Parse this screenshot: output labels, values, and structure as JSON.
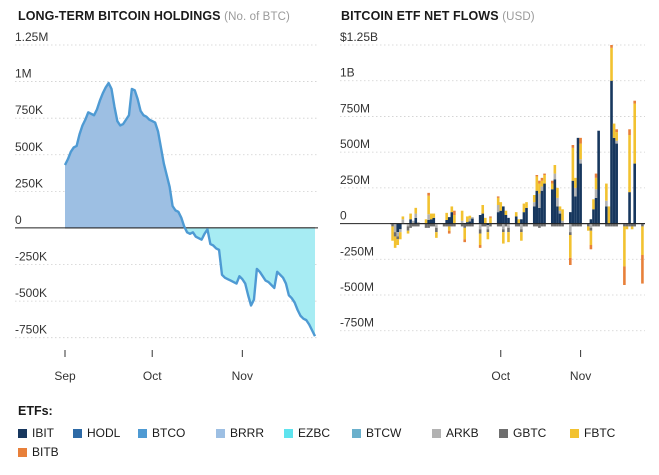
{
  "chart_data": [
    {
      "type": "area",
      "title": "LONG-TERM BITCOIN HOLDINGS",
      "unit": "(No. of BTC)",
      "ylim": [
        -800000,
        1250000
      ],
      "y_ticks": [
        1250000,
        1000000,
        750000,
        500000,
        250000,
        0,
        -250000,
        -500000,
        -750000
      ],
      "y_tick_labels": [
        "1.25M",
        "1M",
        "750K",
        "500K",
        "250K",
        "0",
        "-250K",
        "-500K",
        "-750K"
      ],
      "x_tick_labels": [
        "Sep",
        "Oct",
        "Nov"
      ],
      "x_ticks_day": [
        0,
        30,
        61
      ],
      "xlim_day": [
        0,
        86
      ],
      "colors": {
        "positive": "#9dbfe3",
        "negative": "#a7ecf3",
        "line": "#4e9ad3"
      },
      "x_day": [
        0,
        1,
        2,
        3,
        4,
        5,
        6,
        7,
        8,
        9,
        10,
        11,
        12,
        13,
        14,
        15,
        16,
        17,
        18,
        19,
        20,
        21,
        22,
        23,
        24,
        25,
        26,
        27,
        28,
        29,
        30,
        31,
        32,
        33,
        34,
        35,
        36,
        37,
        38,
        39,
        40,
        41,
        42,
        43,
        44,
        45,
        46,
        47,
        48,
        49,
        50,
        51,
        52,
        53,
        54,
        55,
        56,
        57,
        58,
        59,
        60,
        61,
        62,
        63,
        64,
        65,
        66,
        67,
        68,
        69,
        70,
        71,
        72,
        73,
        74,
        75,
        76,
        77,
        78,
        79,
        80,
        81,
        82,
        83,
        84,
        85,
        86
      ],
      "values": [
        430000,
        470000,
        520000,
        550000,
        560000,
        640000,
        700000,
        740000,
        790000,
        780000,
        770000,
        810000,
        870000,
        920000,
        960000,
        990000,
        950000,
        830000,
        730000,
        700000,
        710000,
        740000,
        770000,
        950000,
        940000,
        880000,
        800000,
        770000,
        760000,
        740000,
        730000,
        720000,
        660000,
        550000,
        440000,
        360000,
        280000,
        150000,
        120000,
        110000,
        70000,
        10000,
        -30000,
        -40000,
        -30000,
        -60000,
        -70000,
        -80000,
        -40000,
        -10000,
        -110000,
        -120000,
        -140000,
        -150000,
        -320000,
        -340000,
        -350000,
        -360000,
        -370000,
        -380000,
        -330000,
        -350000,
        -380000,
        -460000,
        -530000,
        -490000,
        -280000,
        -300000,
        -330000,
        -360000,
        -370000,
        -390000,
        -410000,
        -300000,
        -320000,
        -340000,
        -380000,
        -460000,
        -480000,
        -510000,
        -560000,
        -600000,
        -620000,
        -630000,
        -660000,
        -700000,
        -740000
      ]
    },
    {
      "type": "bar",
      "stacked": true,
      "title": "BITCOIN ETF NET FLOWS",
      "unit": "(USD)",
      "ylim": [
        -850000000,
        1250000000
      ],
      "y_ticks": [
        1250000000,
        1000000000,
        750000000,
        500000000,
        250000000,
        0,
        -250000000,
        -500000000,
        -750000000
      ],
      "y_tick_labels": [
        "$1.25B",
        "1B",
        "750M",
        "500M",
        "250M",
        "0",
        "-250M",
        "-500M",
        "-750M"
      ],
      "x_tick_labels": [
        "Oct",
        "Nov"
      ],
      "x_ticks_day": [
        30,
        61
      ],
      "xlim_day": [
        -13,
        86
      ],
      "x_day": [
        -12,
        -11,
        -10,
        -9,
        -8,
        -6,
        -5,
        -4,
        -3,
        -2,
        1,
        2,
        3,
        4,
        5,
        8,
        9,
        10,
        11,
        12,
        15,
        16,
        17,
        18,
        19,
        22,
        23,
        24,
        25,
        26,
        29,
        30,
        31,
        32,
        33,
        36,
        37,
        38,
        39,
        40,
        43,
        44,
        45,
        46,
        47,
        50,
        51,
        52,
        53,
        54,
        57,
        58,
        59,
        60,
        61,
        64,
        65,
        66,
        67,
        68,
        71,
        72,
        73,
        74,
        75,
        78,
        79,
        80,
        81,
        82,
        85,
        86
      ],
      "series": [
        {
          "name": "IBIT",
          "color": "#17375e",
          "values": [
            0,
            0,
            -60000000,
            -40000000,
            0,
            0,
            30000000,
            0,
            40000000,
            0,
            0,
            25000000,
            30000000,
            40000000,
            0,
            0,
            25000000,
            45000000,
            80000000,
            0,
            0,
            0,
            10000000,
            15000000,
            35000000,
            60000000,
            70000000,
            0,
            -10000000,
            0,
            80000000,
            90000000,
            120000000,
            60000000,
            40000000,
            50000000,
            0,
            30000000,
            80000000,
            110000000,
            120000000,
            230000000,
            110000000,
            230000000,
            280000000,
            240000000,
            310000000,
            120000000,
            70000000,
            0,
            80000000,
            300000000,
            190000000,
            600000000,
            420000000,
            0,
            30000000,
            100000000,
            180000000,
            650000000,
            120000000,
            0,
            1000000000,
            600000000,
            560000000,
            0,
            0,
            220000000,
            0,
            420000000,
            0,
            0
          ]
        },
        {
          "name": "HODL",
          "color": "#2d6aa6",
          "values": [
            0,
            0,
            0,
            0,
            0,
            0,
            0,
            0,
            0,
            0,
            0,
            0,
            0,
            0,
            0,
            0,
            0,
            0,
            0,
            0,
            0,
            0,
            0,
            0,
            0,
            0,
            0,
            0,
            0,
            0,
            0,
            0,
            0,
            0,
            0,
            0,
            0,
            0,
            0,
            0,
            0,
            0,
            0,
            0,
            0,
            0,
            0,
            0,
            0,
            0,
            0,
            0,
            0,
            0,
            0,
            0,
            0,
            0,
            0,
            0,
            0,
            0,
            0,
            0,
            0,
            0,
            0,
            0,
            0,
            0,
            0,
            0
          ]
        },
        {
          "name": "BTCO",
          "color": "#4e9ad3",
          "values": [
            0,
            0,
            0,
            0,
            0,
            0,
            0,
            0,
            0,
            0,
            0,
            0,
            0,
            0,
            0,
            0,
            0,
            0,
            0,
            0,
            0,
            0,
            0,
            0,
            0,
            0,
            0,
            0,
            0,
            0,
            0,
            0,
            0,
            0,
            0,
            0,
            0,
            0,
            0,
            0,
            0,
            0,
            0,
            0,
            0,
            0,
            0,
            0,
            0,
            0,
            0,
            0,
            0,
            0,
            0,
            0,
            0,
            0,
            0,
            0,
            0,
            0,
            0,
            0,
            0,
            0,
            0,
            0,
            0,
            0,
            0,
            0
          ]
        },
        {
          "name": "BRRR",
          "color": "#9dbfe3",
          "values": [
            0,
            0,
            0,
            0,
            0,
            0,
            0,
            0,
            0,
            0,
            0,
            0,
            0,
            0,
            0,
            0,
            0,
            0,
            0,
            0,
            0,
            0,
            0,
            0,
            0,
            0,
            0,
            0,
            0,
            0,
            0,
            0,
            0,
            0,
            0,
            0,
            0,
            0,
            0,
            0,
            0,
            0,
            0,
            0,
            0,
            0,
            0,
            0,
            0,
            0,
            0,
            0,
            0,
            0,
            0,
            0,
            0,
            0,
            0,
            0,
            0,
            0,
            0,
            0,
            0,
            0,
            0,
            0,
            0,
            0,
            0,
            0
          ]
        },
        {
          "name": "EZBC",
          "color": "#5ee3ee",
          "values": [
            0,
            0,
            0,
            0,
            0,
            0,
            0,
            0,
            0,
            0,
            0,
            0,
            0,
            0,
            0,
            0,
            0,
            0,
            0,
            0,
            0,
            0,
            0,
            0,
            0,
            0,
            0,
            0,
            0,
            0,
            0,
            0,
            0,
            0,
            0,
            0,
            0,
            0,
            0,
            0,
            0,
            0,
            0,
            0,
            0,
            0,
            0,
            0,
            0,
            0,
            0,
            0,
            0,
            0,
            0,
            0,
            0,
            0,
            0,
            0,
            0,
            0,
            0,
            0,
            0,
            0,
            0,
            0,
            0,
            0,
            0,
            0
          ]
        },
        {
          "name": "BTCW",
          "color": "#6ab0cc",
          "values": [
            0,
            0,
            0,
            0,
            0,
            0,
            0,
            0,
            0,
            0,
            0,
            0,
            0,
            0,
            0,
            0,
            0,
            0,
            0,
            0,
            0,
            0,
            0,
            0,
            0,
            0,
            0,
            0,
            0,
            0,
            0,
            0,
            0,
            0,
            0,
            0,
            0,
            0,
            0,
            0,
            0,
            0,
            0,
            0,
            0,
            0,
            0,
            0,
            0,
            0,
            0,
            0,
            0,
            0,
            0,
            0,
            0,
            0,
            0,
            0,
            0,
            0,
            0,
            0,
            0,
            0,
            0,
            0,
            0,
            0,
            0,
            0
          ]
        },
        {
          "name": "ARKB",
          "color": "#b2b2b2",
          "values": [
            0,
            -60000000,
            -30000000,
            -20000000,
            30000000,
            -20000000,
            0,
            20000000,
            30000000,
            10000000,
            0,
            40000000,
            0,
            0,
            -30000000,
            0,
            0,
            0,
            0,
            0,
            20000000,
            0,
            0,
            20000000,
            10000000,
            -40000000,
            0,
            0,
            -30000000,
            0,
            50000000,
            0,
            -40000000,
            0,
            -30000000,
            0,
            0,
            -40000000,
            0,
            0,
            30000000,
            0,
            100000000,
            30000000,
            0,
            0,
            40000000,
            60000000,
            20000000,
            20000000,
            -60000000,
            0,
            60000000,
            0,
            30000000,
            0,
            -30000000,
            0,
            60000000,
            0,
            40000000,
            0,
            0,
            0,
            20000000,
            0,
            0,
            0,
            0,
            0,
            0,
            0
          ]
        },
        {
          "name": "GBTC",
          "color": "#6e6e6e",
          "values": [
            -20000000,
            -30000000,
            -20000000,
            0,
            0,
            -30000000,
            -30000000,
            -20000000,
            -20000000,
            -20000000,
            -30000000,
            -30000000,
            -20000000,
            -20000000,
            -30000000,
            -20000000,
            -20000000,
            -20000000,
            -20000000,
            -20000000,
            -20000000,
            -30000000,
            -20000000,
            -20000000,
            -20000000,
            -30000000,
            -20000000,
            -20000000,
            -20000000,
            -20000000,
            -20000000,
            -20000000,
            -20000000,
            -20000000,
            -30000000,
            -20000000,
            -20000000,
            -20000000,
            -20000000,
            -20000000,
            -20000000,
            -20000000,
            -30000000,
            -20000000,
            -20000000,
            -20000000,
            -20000000,
            -20000000,
            -20000000,
            -20000000,
            -20000000,
            -20000000,
            -20000000,
            -20000000,
            -20000000,
            -20000000,
            -20000000,
            -20000000,
            -20000000,
            -20000000,
            -20000000,
            -20000000,
            -20000000,
            -20000000,
            -20000000,
            -20000000,
            -20000000,
            -20000000,
            -20000000,
            -20000000,
            -20000000,
            0
          ]
        },
        {
          "name": "FBTC",
          "color": "#f2c230",
          "values": [
            -100000000,
            -80000000,
            -40000000,
            -50000000,
            20000000,
            -20000000,
            40000000,
            0,
            40000000,
            0,
            30000000,
            130000000,
            40000000,
            30000000,
            -40000000,
            0,
            50000000,
            -30000000,
            40000000,
            60000000,
            70000000,
            -80000000,
            40000000,
            20000000,
            0,
            -80000000,
            60000000,
            40000000,
            -50000000,
            40000000,
            50000000,
            60000000,
            -80000000,
            30000000,
            -70000000,
            30000000,
            30000000,
            -60000000,
            60000000,
            40000000,
            50000000,
            100000000,
            70000000,
            40000000,
            60000000,
            40000000,
            60000000,
            70000000,
            30000000,
            80000000,
            -160000000,
            230000000,
            70000000,
            0,
            110000000,
            -30000000,
            -100000000,
            70000000,
            80000000,
            0,
            120000000,
            120000000,
            230000000,
            100000000,
            60000000,
            -280000000,
            -20000000,
            400000000,
            -20000000,
            420000000,
            -200000000,
            0
          ]
        },
        {
          "name": "BITB",
          "color": "#e8803a",
          "values": [
            0,
            0,
            0,
            0,
            0,
            0,
            0,
            0,
            0,
            0,
            0,
            20000000,
            0,
            0,
            0,
            0,
            0,
            -20000000,
            0,
            30000000,
            0,
            -20000000,
            0,
            0,
            0,
            -20000000,
            0,
            0,
            0,
            10000000,
            10000000,
            0,
            0,
            0,
            0,
            0,
            0,
            0,
            0,
            0,
            0,
            10000000,
            20000000,
            20000000,
            10000000,
            20000000,
            0,
            0,
            0,
            0,
            -50000000,
            20000000,
            0,
            0,
            40000000,
            0,
            -30000000,
            0,
            30000000,
            0,
            0,
            0,
            20000000,
            0,
            20000000,
            -130000000,
            0,
            40000000,
            0,
            20000000,
            -200000000,
            0
          ]
        }
      ]
    }
  ],
  "legend": {
    "title": "ETFs:",
    "items": [
      "IBIT",
      "HODL",
      "BTCO",
      "BRRR",
      "EZBC",
      "BTCW",
      "ARKB",
      "GBTC",
      "FBTC",
      "BITB"
    ]
  }
}
